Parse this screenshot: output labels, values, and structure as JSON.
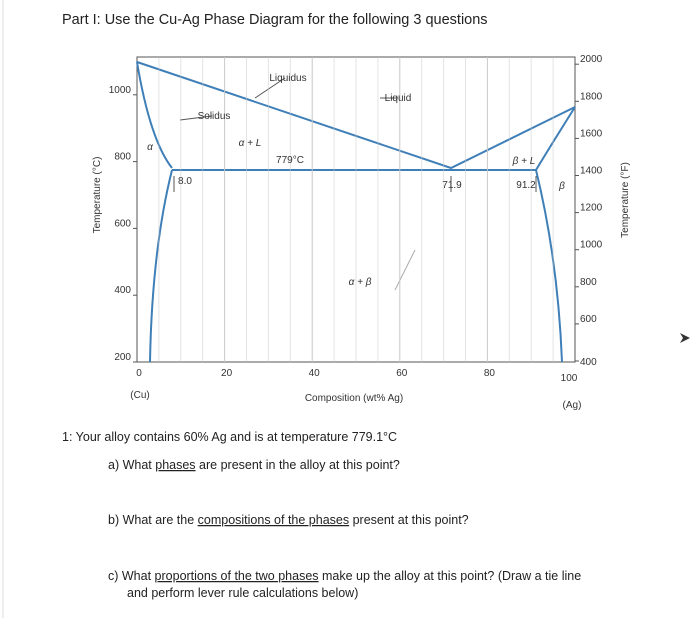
{
  "header": {
    "title": "Part I: Use the Cu-Ag Phase Diagram for the following 3 questions"
  },
  "diagram": {
    "y_axis_label": "Temperature (°C)",
    "y2_axis_label": "Temperature (°F)",
    "x_axis_label": "Composition (wt% Ag)",
    "x_ticks": [
      "0",
      "20",
      "40",
      "60",
      "80",
      "100"
    ],
    "y_ticks": [
      "200",
      "400",
      "600",
      "800",
      "1000"
    ],
    "y2_ticks": [
      "400",
      "600",
      "800",
      "1000",
      "1200",
      "1400",
      "1600",
      "1800",
      "2000"
    ],
    "x_end_labels": [
      "(Cu)",
      "(Ag)"
    ],
    "annotations": [
      "Liquidus",
      "Liquid",
      "Solidus",
      "α + L",
      "779°C",
      "α",
      "8.0",
      "71.9",
      "β + L",
      "91.2",
      "β",
      "α + β"
    ]
  },
  "intro": "1: Your alloy contains 60% Ag and is at temperature 779.1°C",
  "questions": [
    {
      "before": "a)  What ",
      "underlined": "phases",
      "after": " are present in the alloy at this point?"
    },
    {
      "before": "b)  What are the ",
      "underlined": "compositions of the phases",
      "after": " present at this point?"
    },
    {
      "before": "c)  What ",
      "underlined": "proportions of the two phases",
      "after": " make up the alloy at this point? (Draw a tie line",
      "continuation": "and perform lever rule calculations below)"
    }
  ]
}
